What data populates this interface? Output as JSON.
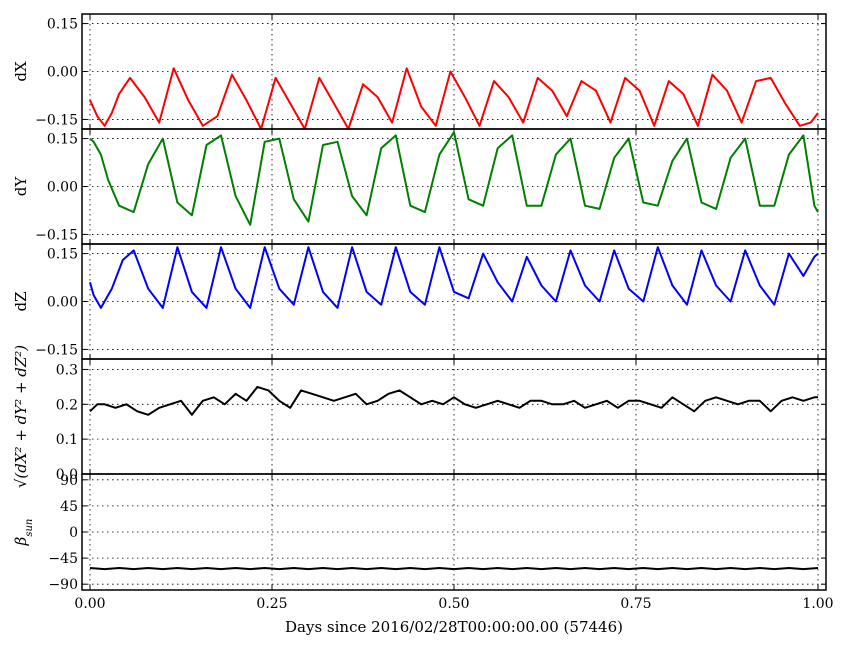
{
  "chart_data": {
    "type": "line",
    "xlabel": "Days since 2016/02/28T00:00:00.00 (57446)",
    "xlim": [
      0,
      1
    ],
    "x_ticks": [
      0.0,
      0.25,
      0.5,
      0.75,
      1.0
    ],
    "x_tick_labels": [
      "0.00",
      "0.25",
      "0.50",
      "0.75",
      "1.00"
    ],
    "grid": true,
    "panels": [
      {
        "id": "dX",
        "ylabel": "dX",
        "ylim": [
          -0.18,
          0.18
        ],
        "yticks": [
          -0.15,
          0.0,
          0.15
        ],
        "ytick_labels": [
          "−0.15",
          "0.00",
          "0.15"
        ],
        "color": "#ff0000",
        "series": [
          {
            "x": [
              0,
              0.01,
              0.02,
              0.03,
              0.04,
              0.055,
              0.075,
              0.095,
              0.115,
              0.135,
              0.155,
              0.175,
              0.195,
              0.215,
              0.235,
              0.255,
              0.275,
              0.295,
              0.315,
              0.335,
              0.355,
              0.375,
              0.395,
              0.415,
              0.435,
              0.455,
              0.475,
              0.495,
              0.515,
              0.535,
              0.555,
              0.575,
              0.595,
              0.615,
              0.635,
              0.655,
              0.675,
              0.695,
              0.715,
              0.735,
              0.755,
              0.775,
              0.795,
              0.815,
              0.835,
              0.855,
              0.875,
              0.895,
              0.915,
              0.935,
              0.955,
              0.975,
              0.99,
              1.0
            ],
            "y": [
              -0.09,
              -0.14,
              -0.17,
              -0.13,
              -0.07,
              -0.02,
              -0.08,
              -0.16,
              0.01,
              -0.09,
              -0.17,
              -0.14,
              -0.01,
              -0.09,
              -0.18,
              -0.02,
              -0.1,
              -0.18,
              -0.02,
              -0.1,
              -0.18,
              -0.04,
              -0.08,
              -0.16,
              0.01,
              -0.11,
              -0.17,
              0.0,
              -0.08,
              -0.17,
              -0.03,
              -0.08,
              -0.16,
              -0.02,
              -0.06,
              -0.14,
              -0.03,
              -0.06,
              -0.16,
              -0.02,
              -0.06,
              -0.17,
              -0.03,
              -0.07,
              -0.17,
              -0.01,
              -0.06,
              -0.16,
              -0.03,
              -0.02,
              -0.1,
              -0.17,
              -0.16,
              -0.13
            ]
          }
        ]
      },
      {
        "id": "dY",
        "ylabel": "dY",
        "ylim": [
          -0.18,
          0.18
        ],
        "yticks": [
          -0.15,
          0.0,
          0.15
        ],
        "ytick_labels": [
          "−0.15",
          "0.00",
          "0.15"
        ],
        "color": "#008000",
        "series": [
          {
            "x": [
              0,
              0.005,
              0.015,
              0.025,
              0.04,
              0.06,
              0.08,
              0.1,
              0.12,
              0.14,
              0.16,
              0.18,
              0.2,
              0.22,
              0.24,
              0.26,
              0.28,
              0.3,
              0.32,
              0.34,
              0.36,
              0.38,
              0.4,
              0.42,
              0.44,
              0.46,
              0.48,
              0.5,
              0.52,
              0.54,
              0.56,
              0.58,
              0.6,
              0.62,
              0.64,
              0.66,
              0.68,
              0.7,
              0.72,
              0.74,
              0.76,
              0.78,
              0.8,
              0.82,
              0.84,
              0.86,
              0.88,
              0.9,
              0.92,
              0.94,
              0.96,
              0.98,
              0.995,
              1.0
            ],
            "y": [
              0.15,
              0.14,
              0.1,
              0.02,
              -0.06,
              -0.08,
              0.07,
              0.15,
              -0.05,
              -0.09,
              0.13,
              0.16,
              -0.03,
              -0.12,
              0.14,
              0.15,
              -0.04,
              -0.11,
              0.13,
              0.14,
              -0.03,
              -0.09,
              0.12,
              0.16,
              -0.06,
              -0.08,
              0.1,
              0.17,
              -0.04,
              -0.06,
              0.12,
              0.16,
              -0.06,
              -0.06,
              0.1,
              0.15,
              -0.06,
              -0.07,
              0.09,
              0.15,
              -0.05,
              -0.06,
              0.08,
              0.15,
              -0.05,
              -0.07,
              0.09,
              0.15,
              -0.06,
              -0.06,
              0.1,
              0.16,
              -0.06,
              -0.08
            ]
          }
        ]
      },
      {
        "id": "dZ",
        "ylabel": "dZ",
        "ylim": [
          -0.18,
          0.18
        ],
        "yticks": [
          -0.15,
          0.0,
          0.15
        ],
        "ytick_labels": [
          "−0.15",
          "0.00",
          "0.15"
        ],
        "color": "#0000ff",
        "series": [
          {
            "x": [
              0,
              0.005,
              0.015,
              0.03,
              0.045,
              0.06,
              0.08,
              0.1,
              0.12,
              0.14,
              0.16,
              0.18,
              0.2,
              0.22,
              0.24,
              0.26,
              0.28,
              0.3,
              0.32,
              0.34,
              0.36,
              0.38,
              0.4,
              0.42,
              0.44,
              0.46,
              0.48,
              0.5,
              0.52,
              0.54,
              0.56,
              0.58,
              0.6,
              0.62,
              0.64,
              0.66,
              0.68,
              0.7,
              0.72,
              0.74,
              0.76,
              0.78,
              0.8,
              0.82,
              0.84,
              0.86,
              0.88,
              0.9,
              0.92,
              0.94,
              0.96,
              0.98,
              0.995,
              1.0
            ],
            "y": [
              0.06,
              0.02,
              -0.02,
              0.04,
              0.13,
              0.16,
              0.04,
              -0.02,
              0.17,
              0.03,
              -0.02,
              0.17,
              0.04,
              -0.02,
              0.17,
              0.04,
              -0.01,
              0.17,
              0.03,
              -0.02,
              0.17,
              0.03,
              -0.01,
              0.17,
              0.03,
              -0.01,
              0.17,
              0.03,
              0.01,
              0.15,
              0.06,
              0.0,
              0.14,
              0.05,
              0.0,
              0.16,
              0.05,
              0.0,
              0.16,
              0.04,
              0.0,
              0.17,
              0.05,
              -0.01,
              0.16,
              0.05,
              0.0,
              0.16,
              0.05,
              -0.01,
              0.15,
              0.08,
              0.14,
              0.15
            ]
          }
        ]
      },
      {
        "id": "mag",
        "ylabel": "√(dX² + dY² + dZ²)",
        "ylim": [
          0.0,
          0.33
        ],
        "yticks": [
          0.0,
          0.1,
          0.2,
          0.3
        ],
        "ytick_labels": [
          "0.0",
          "0.1",
          "0.2",
          "0.3"
        ],
        "color": "#000000",
        "series": [
          {
            "x": [
              0,
              0.01,
              0.02,
              0.035,
              0.05,
              0.065,
              0.08,
              0.095,
              0.11,
              0.125,
              0.14,
              0.155,
              0.17,
              0.185,
              0.2,
              0.215,
              0.23,
              0.245,
              0.26,
              0.275,
              0.29,
              0.305,
              0.32,
              0.335,
              0.35,
              0.365,
              0.38,
              0.395,
              0.41,
              0.425,
              0.44,
              0.455,
              0.47,
              0.485,
              0.5,
              0.515,
              0.53,
              0.545,
              0.56,
              0.575,
              0.59,
              0.605,
              0.62,
              0.635,
              0.65,
              0.665,
              0.68,
              0.695,
              0.71,
              0.725,
              0.74,
              0.755,
              0.77,
              0.785,
              0.8,
              0.815,
              0.83,
              0.845,
              0.86,
              0.875,
              0.89,
              0.905,
              0.92,
              0.935,
              0.95,
              0.965,
              0.98,
              0.995,
              1.0
            ],
            "y": [
              0.18,
              0.2,
              0.2,
              0.19,
              0.2,
              0.18,
              0.17,
              0.19,
              0.2,
              0.21,
              0.17,
              0.21,
              0.22,
              0.2,
              0.23,
              0.21,
              0.25,
              0.24,
              0.21,
              0.19,
              0.24,
              0.23,
              0.22,
              0.21,
              0.22,
              0.23,
              0.2,
              0.21,
              0.23,
              0.24,
              0.22,
              0.2,
              0.21,
              0.2,
              0.22,
              0.2,
              0.19,
              0.2,
              0.21,
              0.2,
              0.19,
              0.21,
              0.21,
              0.2,
              0.2,
              0.21,
              0.19,
              0.2,
              0.21,
              0.19,
              0.21,
              0.21,
              0.2,
              0.19,
              0.22,
              0.2,
              0.18,
              0.21,
              0.22,
              0.21,
              0.2,
              0.21,
              0.21,
              0.18,
              0.21,
              0.22,
              0.21,
              0.22,
              0.22
            ]
          }
        ]
      },
      {
        "id": "beta",
        "ylabel": "β",
        "ylabel_sub": "sun",
        "ylim": [
          -100,
          100
        ],
        "yticks": [
          -90,
          -45,
          0,
          45,
          90
        ],
        "ytick_labels": [
          "−90",
          "−45",
          "0",
          "45",
          "90"
        ],
        "color": "#000000",
        "series": [
          {
            "x": [
              0,
              0.02,
              0.04,
              0.06,
              0.08,
              0.1,
              0.12,
              0.14,
              0.16,
              0.18,
              0.2,
              0.22,
              0.24,
              0.26,
              0.28,
              0.3,
              0.32,
              0.34,
              0.36,
              0.38,
              0.4,
              0.42,
              0.44,
              0.46,
              0.48,
              0.5,
              0.52,
              0.54,
              0.56,
              0.58,
              0.6,
              0.62,
              0.64,
              0.66,
              0.68,
              0.7,
              0.72,
              0.74,
              0.76,
              0.78,
              0.8,
              0.82,
              0.84,
              0.86,
              0.88,
              0.9,
              0.92,
              0.94,
              0.96,
              0.98,
              1.0
            ],
            "y": [
              -62,
              -64,
              -62,
              -64,
              -62,
              -64,
              -62,
              -64,
              -62,
              -64,
              -62,
              -64,
              -62,
              -64,
              -62,
              -64,
              -62,
              -64,
              -62,
              -64,
              -62,
              -64,
              -62,
              -64,
              -62,
              -64,
              -62,
              -64,
              -62,
              -64,
              -62,
              -64,
              -62,
              -64,
              -62,
              -64,
              -62,
              -64,
              -62,
              -64,
              -62,
              -64,
              -62,
              -64,
              -62,
              -64,
              -62,
              -64,
              -62,
              -64,
              -62
            ]
          }
        ]
      }
    ]
  }
}
